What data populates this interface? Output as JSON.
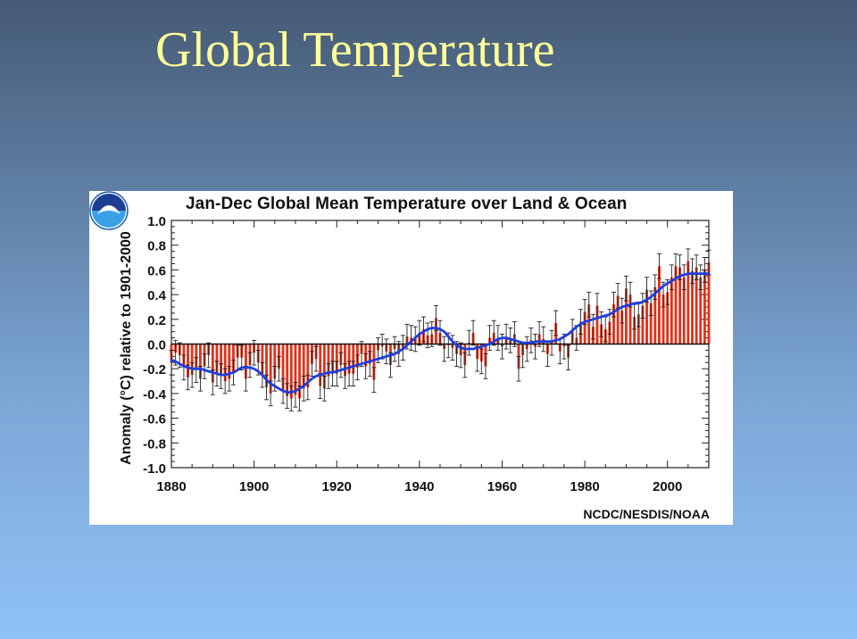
{
  "slide": {
    "title": "Global Temperature"
  },
  "chart_data": {
    "type": "bar",
    "title": "Jan-Dec Global Mean Temperature over Land & Ocean",
    "ylabel": "Anomaly (°C) relative to 1901-2000",
    "xlabel": "",
    "xlim": [
      1880,
      2010
    ],
    "ylim": [
      -1.0,
      1.0
    ],
    "xticks": [
      "1880",
      "1900",
      "1920",
      "1940",
      "1960",
      "1980",
      "2000"
    ],
    "yticks": [
      "1.0",
      "0.8",
      "0.6",
      "0.4",
      "0.2",
      "0.0",
      "-0.2",
      "-0.4",
      "-0.6",
      "-0.8",
      "-1.0"
    ],
    "credit": "NCDC/NESDIS/NOAA",
    "colors": {
      "bars": "#e0321a",
      "error_bars": "#222222",
      "smooth_line": "#1f3fe0"
    },
    "start_year": 1880,
    "anomaly": [
      -0.15,
      -0.07,
      -0.09,
      -0.19,
      -0.27,
      -0.25,
      -0.21,
      -0.28,
      -0.18,
      -0.09,
      -0.31,
      -0.24,
      -0.26,
      -0.3,
      -0.28,
      -0.23,
      -0.11,
      -0.11,
      -0.28,
      -0.17,
      -0.07,
      -0.15,
      -0.25,
      -0.35,
      -0.4,
      -0.28,
      -0.2,
      -0.38,
      -0.42,
      -0.44,
      -0.41,
      -0.44,
      -0.36,
      -0.35,
      -0.16,
      -0.12,
      -0.34,
      -0.36,
      -0.26,
      -0.24,
      -0.24,
      -0.17,
      -0.26,
      -0.24,
      -0.24,
      -0.19,
      -0.08,
      -0.18,
      -0.16,
      -0.29,
      -0.05,
      -0.02,
      -0.06,
      -0.17,
      -0.04,
      -0.08,
      -0.03,
      0.06,
      0.05,
      0.04,
      0.09,
      0.12,
      0.07,
      0.08,
      0.21,
      0.09,
      -0.04,
      -0.01,
      -0.03,
      -0.08,
      -0.09,
      -0.17,
      0.01,
      0.09,
      -0.12,
      -0.14,
      -0.18,
      0.05,
      0.09,
      0.05,
      -0.02,
      0.06,
      0.03,
      0.08,
      -0.2,
      -0.09,
      -0.04,
      0.03,
      -0.02,
      0.08,
      0.04,
      -0.08,
      0.01,
      0.17,
      -0.06,
      -0.02,
      -0.11,
      0.1,
      0.05,
      0.18,
      0.26,
      0.32,
      0.14,
      0.31,
      0.16,
      0.12,
      0.18,
      0.32,
      0.39,
      0.27,
      0.45,
      0.4,
      0.22,
      0.24,
      0.31,
      0.44,
      0.33,
      0.46,
      0.63,
      0.4,
      0.42,
      0.54,
      0.63,
      0.62,
      0.54,
      0.67,
      0.59,
      0.62,
      0.54,
      0.6,
      0.66
    ],
    "uncertainty": 0.1,
    "smoothed": [
      -0.13,
      -0.14,
      -0.16,
      -0.18,
      -0.19,
      -0.2,
      -0.2,
      -0.2,
      -0.21,
      -0.22,
      -0.23,
      -0.24,
      -0.25,
      -0.25,
      -0.24,
      -0.23,
      -0.21,
      -0.19,
      -0.19,
      -0.19,
      -0.2,
      -0.22,
      -0.25,
      -0.29,
      -0.32,
      -0.34,
      -0.36,
      -0.38,
      -0.39,
      -0.39,
      -0.38,
      -0.36,
      -0.34,
      -0.31,
      -0.28,
      -0.26,
      -0.25,
      -0.24,
      -0.23,
      -0.23,
      -0.22,
      -0.21,
      -0.2,
      -0.19,
      -0.18,
      -0.17,
      -0.16,
      -0.15,
      -0.14,
      -0.13,
      -0.12,
      -0.11,
      -0.1,
      -0.09,
      -0.08,
      -0.06,
      -0.04,
      -0.01,
      0.02,
      0.05,
      0.08,
      0.1,
      0.12,
      0.13,
      0.13,
      0.12,
      0.1,
      0.06,
      0.02,
      -0.01,
      -0.03,
      -0.04,
      -0.04,
      -0.04,
      -0.03,
      -0.02,
      -0.01,
      0.0,
      0.02,
      0.04,
      0.05,
      0.05,
      0.04,
      0.03,
      0.02,
      0.01,
      0.01,
      0.01,
      0.02,
      0.02,
      0.02,
      0.02,
      0.02,
      0.03,
      0.04,
      0.06,
      0.08,
      0.11,
      0.14,
      0.16,
      0.18,
      0.19,
      0.2,
      0.21,
      0.22,
      0.23,
      0.24,
      0.26,
      0.28,
      0.3,
      0.31,
      0.32,
      0.33,
      0.33,
      0.34,
      0.36,
      0.38,
      0.41,
      0.44,
      0.47,
      0.49,
      0.51,
      0.53,
      0.55,
      0.56,
      0.57,
      0.57,
      0.57,
      0.57,
      0.57,
      0.57
    ]
  }
}
